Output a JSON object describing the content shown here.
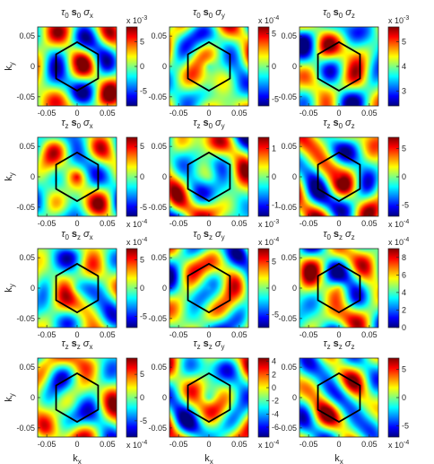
{
  "figure": {
    "xlabel": "k",
    "xlabel_sub": "x",
    "ylabel": "k",
    "ylabel_sub": "y"
  },
  "chart_data": [
    {
      "type": "heatmap",
      "title": [
        [
          "τ",
          "0"
        ],
        [
          "s",
          "0"
        ],
        [
          "σ",
          "x"
        ]
      ],
      "colorbar": {
        "ticks": [
          "5",
          "0",
          "-5"
        ],
        "tick_values": [
          5,
          0,
          -5
        ],
        "exponent": "x 10",
        "exponent_power": "-3",
        "range": [
          -8,
          8
        ]
      },
      "xlim": [
        -0.065,
        0.065
      ],
      "ylim": [
        -0.065,
        0.065
      ],
      "xticks": [
        "-0.05",
        "0",
        "0.05"
      ],
      "yticks": [
        "0.05",
        "0",
        "-0.05"
      ],
      "hexagon": true
    },
    {
      "type": "heatmap",
      "title": [
        [
          "τ",
          "0"
        ],
        [
          "s",
          "0"
        ],
        [
          "σ",
          "y"
        ]
      ],
      "colorbar": {
        "ticks": [
          "5",
          "0",
          "-5"
        ],
        "tick_values": [
          5,
          0,
          -5
        ],
        "exponent": "x 10",
        "exponent_power": "-4",
        "range": [
          -6,
          6
        ]
      },
      "xlim": [
        -0.065,
        0.065
      ],
      "ylim": [
        -0.065,
        0.065
      ],
      "xticks": [
        "-0.05",
        "0",
        "0.05"
      ],
      "yticks": [
        "0.05",
        "0",
        "-0.05"
      ],
      "hexagon": true
    },
    {
      "type": "heatmap",
      "title": [
        [
          "τ",
          "0"
        ],
        [
          "s",
          "0"
        ],
        [
          "σ",
          "z"
        ]
      ],
      "colorbar": {
        "ticks": [
          "5",
          "4",
          "3"
        ],
        "tick_values": [
          5,
          4,
          3
        ],
        "exponent": "x 10",
        "exponent_power": "-3",
        "range": [
          2.4,
          5.6
        ]
      },
      "xlim": [
        -0.065,
        0.065
      ],
      "ylim": [
        -0.065,
        0.065
      ],
      "xticks": [
        "-0.05",
        "0",
        "0.05"
      ],
      "yticks": [
        "0.05",
        "0",
        "-0.05"
      ],
      "hexagon": true
    },
    {
      "type": "heatmap",
      "title": [
        [
          "τ",
          "z"
        ],
        [
          "s",
          "0"
        ],
        [
          "σ",
          "x"
        ]
      ],
      "colorbar": {
        "ticks": [
          "5",
          "0",
          "-5"
        ],
        "tick_values": [
          5,
          0,
          -5
        ],
        "exponent": "x 10",
        "exponent_power": "-4",
        "range": [
          -6.5,
          6.5
        ]
      },
      "xlim": [
        -0.065,
        0.065
      ],
      "ylim": [
        -0.065,
        0.065
      ],
      "xticks": [
        "-0.05",
        "0",
        "0.05"
      ],
      "yticks": [
        "0.05",
        "0",
        "-0.05"
      ],
      "hexagon": true
    },
    {
      "type": "heatmap",
      "title": [
        [
          "τ",
          "z"
        ],
        [
          "s",
          "0"
        ],
        [
          "σ",
          "y"
        ]
      ],
      "colorbar": {
        "ticks": [
          "1",
          "0",
          "-1"
        ],
        "tick_values": [
          1,
          0,
          -1
        ],
        "exponent": "x 10",
        "exponent_power": "-3",
        "range": [
          -1.4,
          1.4
        ]
      },
      "xlim": [
        -0.065,
        0.065
      ],
      "ylim": [
        -0.065,
        0.065
      ],
      "xticks": [
        "-0.05",
        "0",
        "0.05"
      ],
      "yticks": [
        "0.05",
        "0",
        "-0.05"
      ],
      "hexagon": true
    },
    {
      "type": "heatmap",
      "title": [
        [
          "τ",
          "z"
        ],
        [
          "s",
          "0"
        ],
        [
          "σ",
          "z"
        ]
      ],
      "colorbar": {
        "ticks": [
          "5",
          "0",
          "-5"
        ],
        "tick_values": [
          5,
          0,
          -5
        ],
        "exponent": "x 10",
        "exponent_power": "-4",
        "range": [
          -7,
          7
        ]
      },
      "xlim": [
        -0.065,
        0.065
      ],
      "ylim": [
        -0.065,
        0.065
      ],
      "xticks": [
        "-0.05",
        "0",
        "0.05"
      ],
      "yticks": [
        "0.05",
        "0",
        "-0.05"
      ],
      "hexagon": true
    },
    {
      "type": "heatmap",
      "title": [
        [
          "τ",
          "0"
        ],
        [
          "s",
          "z"
        ],
        [
          "σ",
          "x"
        ]
      ],
      "colorbar": {
        "ticks": [
          "5",
          "0",
          "-5"
        ],
        "tick_values": [
          5,
          0,
          -5
        ],
        "exponent": "x 10",
        "exponent_power": "-4",
        "range": [
          -7,
          7
        ]
      },
      "xlim": [
        -0.065,
        0.065
      ],
      "ylim": [
        -0.065,
        0.065
      ],
      "xticks": [
        "-0.05",
        "0",
        "0.05"
      ],
      "yticks": [
        "0.05",
        "0",
        "-0.05"
      ],
      "hexagon": true
    },
    {
      "type": "heatmap",
      "title": [
        [
          "τ",
          "0"
        ],
        [
          "s",
          "z"
        ],
        [
          "σ",
          "y"
        ]
      ],
      "colorbar": {
        "ticks": [
          "5",
          "0",
          "-5"
        ],
        "tick_values": [
          5,
          0,
          -5
        ],
        "exponent": "x 10",
        "exponent_power": "-4",
        "range": [
          -7.5,
          7.5
        ]
      },
      "xlim": [
        -0.065,
        0.065
      ],
      "ylim": [
        -0.065,
        0.065
      ],
      "xticks": [
        "-0.05",
        "0",
        "0.05"
      ],
      "yticks": [
        "0.05",
        "0",
        "-0.05"
      ],
      "hexagon": true
    },
    {
      "type": "heatmap",
      "title": [
        [
          "τ",
          "0"
        ],
        [
          "s",
          "z"
        ],
        [
          "σ",
          "z"
        ]
      ],
      "colorbar": {
        "ticks": [
          "8",
          "6",
          "4",
          "2",
          "0"
        ],
        "tick_values": [
          8,
          6,
          4,
          2,
          0
        ],
        "exponent": "x 10",
        "exponent_power": "-4",
        "range": [
          0,
          9
        ]
      },
      "xlim": [
        -0.065,
        0.065
      ],
      "ylim": [
        -0.065,
        0.065
      ],
      "xticks": [
        "-0.05",
        "0",
        "0.05"
      ],
      "yticks": [
        "0.05",
        "0",
        "-0.05"
      ],
      "hexagon": true
    },
    {
      "type": "heatmap",
      "title": [
        [
          "τ",
          "z"
        ],
        [
          "s",
          "z"
        ],
        [
          "σ",
          "x"
        ]
      ],
      "colorbar": {
        "ticks": [
          "5",
          "0",
          "-5"
        ],
        "tick_values": [
          5,
          0,
          -5
        ],
        "exponent": "x 10",
        "exponent_power": "-4",
        "range": [
          -8.5,
          8.5
        ]
      },
      "xlim": [
        -0.065,
        0.065
      ],
      "ylim": [
        -0.065,
        0.065
      ],
      "xticks": [
        "-0.05",
        "0",
        "0.05"
      ],
      "yticks": [
        "0.05",
        "0",
        "-0.05"
      ],
      "hexagon": true
    },
    {
      "type": "heatmap",
      "title": [
        [
          "τ",
          "z"
        ],
        [
          "s",
          "z"
        ],
        [
          "σ",
          "y"
        ]
      ],
      "colorbar": {
        "ticks": [
          "4",
          "2",
          "0",
          "-2",
          "-4",
          "-6"
        ],
        "tick_values": [
          4,
          2,
          0,
          -2,
          -4,
          -6
        ],
        "exponent": "x 10",
        "exponent_power": "-4",
        "range": [
          -7.5,
          4.5
        ]
      },
      "xlim": [
        -0.065,
        0.065
      ],
      "ylim": [
        -0.065,
        0.065
      ],
      "xticks": [
        "-0.05",
        "0",
        "0.05"
      ],
      "yticks": [
        "0.05",
        "0",
        "-0.05"
      ],
      "hexagon": true
    },
    {
      "type": "heatmap",
      "title": [
        [
          "τ",
          "z"
        ],
        [
          "s",
          "z"
        ],
        [
          "σ",
          "z"
        ]
      ],
      "colorbar": {
        "ticks": [
          "5",
          "0",
          "-5"
        ],
        "tick_values": [
          5,
          0,
          -5
        ],
        "exponent": "x 10",
        "exponent_power": "-4",
        "range": [
          -7,
          7
        ]
      },
      "xlim": [
        -0.065,
        0.065
      ],
      "ylim": [
        -0.065,
        0.065
      ],
      "xticks": [
        "-0.05",
        "0",
        "0.05"
      ],
      "yticks": [
        "0.05",
        "0",
        "-0.05"
      ],
      "hexagon": true
    }
  ]
}
